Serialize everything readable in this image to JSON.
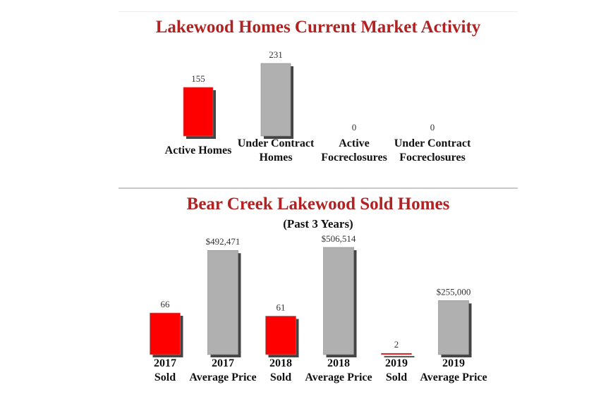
{
  "colors": {
    "title": "#b22222",
    "count_bar": "#ff0000",
    "price_bar": "#b0b0b0"
  },
  "chart_data": [
    {
      "type": "bar",
      "title": "Lakewood Homes Current Market Activity",
      "categories": [
        [
          "Active Homes"
        ],
        [
          "Under Contract",
          "Homes"
        ],
        [
          "Active",
          "Focreclosures"
        ],
        [
          "Under Contract",
          "Focreclosures"
        ]
      ],
      "values": [
        155,
        231,
        0,
        0
      ],
      "value_labels": [
        "155",
        "231",
        "0",
        "0"
      ],
      "bar_colors": [
        "#ff0000",
        "#b0b0b0",
        "#ff0000",
        "#b0b0b0"
      ],
      "ylim": [
        0,
        231
      ],
      "grid": false
    },
    {
      "type": "bar",
      "title": "Bear Creek Lakewood Sold Homes",
      "subtitle": "(Past 3 Years)",
      "categories": [
        [
          "2017",
          "Sold"
        ],
        [
          "2017",
          "Average Price"
        ],
        [
          "2018",
          "Sold"
        ],
        [
          "2018",
          "Average Price"
        ],
        [
          "2019",
          "Sold"
        ],
        [
          "2019",
          "Average Price"
        ]
      ],
      "values": [
        66,
        492471,
        61,
        506514,
        2,
        255000
      ],
      "value_labels": [
        "66",
        "$492,471",
        "61",
        "$506,514",
        "2",
        "$255,000"
      ],
      "bar_colors": [
        "#ff0000",
        "#b0b0b0",
        "#ff0000",
        "#b0b0b0",
        "#ff0000",
        "#b0b0b0"
      ],
      "grid": false
    }
  ]
}
